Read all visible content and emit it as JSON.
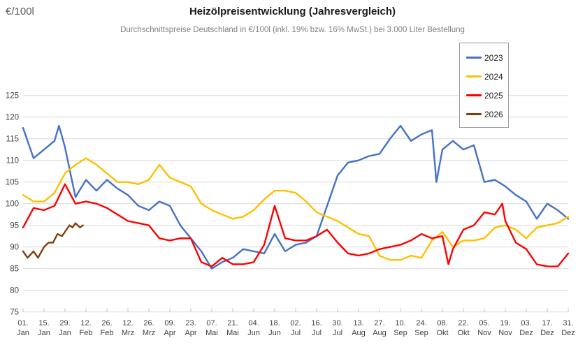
{
  "header": {
    "unit_label": "€/100l",
    "title": "Heizölpreisentwicklung (Jahresvergleich)",
    "subtitle": "Durchschnittspreise Deutschland in €/100l (inkl. 19% bzw. 16% MwSt.) bei 3.000 Liter Bestellung"
  },
  "legend": {
    "items": [
      {
        "label": "2023",
        "color": "#4472C4"
      },
      {
        "label": "2024",
        "color": "#FFC000"
      },
      {
        "label": "2025",
        "color": "#FF0000"
      },
      {
        "label": "2026",
        "color": "#843C0C"
      }
    ]
  },
  "chart_data": {
    "type": "line",
    "title": "Heizölpreisentwicklung (Jahresvergleich)",
    "subtitle": "Durchschnittspreise Deutschland in €/100l (inkl. 19% bzw. 16% MwSt.) bei 3.000 Liter Bestellung",
    "ylabel": "€/100l",
    "xlabel": "",
    "ylim": [
      75,
      125
    ],
    "y_ticks": [
      75,
      80,
      85,
      90,
      95,
      100,
      105,
      110,
      115,
      120,
      125
    ],
    "grid": "horizontal-only",
    "gridline_color": "#D9D9D9",
    "legend_position": "top-right",
    "x_axis_unit": "day-of-year",
    "x_tick_days": [
      1,
      15,
      29,
      43,
      57,
      71,
      85,
      99,
      113,
      127,
      141,
      155,
      169,
      183,
      197,
      211,
      225,
      239,
      253,
      267,
      281,
      295,
      309,
      323,
      337,
      351,
      365
    ],
    "x_tick_labels": [
      [
        "01.",
        "Jan"
      ],
      [
        "15.",
        "Jan"
      ],
      [
        "29.",
        "Jan"
      ],
      [
        "12.",
        "Feb"
      ],
      [
        "26.",
        "Feb"
      ],
      [
        "12.",
        "Mrz"
      ],
      [
        "26.",
        "Mrz"
      ],
      [
        "09.",
        "Apr"
      ],
      [
        "23.",
        "Apr"
      ],
      [
        "07.",
        "Mai"
      ],
      [
        "21.",
        "Mai"
      ],
      [
        "04.",
        "Jun"
      ],
      [
        "18.",
        "Jun"
      ],
      [
        "02.",
        "Jul"
      ],
      [
        "16.",
        "Jul"
      ],
      [
        "30.",
        "Jul"
      ],
      [
        "13.",
        "Aug"
      ],
      [
        "27.",
        "Aug"
      ],
      [
        "10.",
        "Sep"
      ],
      [
        "24.",
        "Sep"
      ],
      [
        "08.",
        "Okt"
      ],
      [
        "22.",
        "Okt"
      ],
      [
        "05.",
        "Nov"
      ],
      [
        "19.",
        "Nov"
      ],
      [
        "03.",
        "Dez"
      ],
      [
        "17.",
        "Dez"
      ],
      [
        "31.",
        "Dez"
      ]
    ],
    "series": [
      {
        "name": "2023",
        "color": "#4472C4",
        "points": [
          [
            1,
            117.5
          ],
          [
            8,
            110.5
          ],
          [
            15,
            112.5
          ],
          [
            22,
            114.5
          ],
          [
            25,
            118
          ],
          [
            29,
            113
          ],
          [
            36,
            101.5
          ],
          [
            43,
            105.5
          ],
          [
            50,
            103
          ],
          [
            57,
            105.5
          ],
          [
            64,
            103.5
          ],
          [
            71,
            102
          ],
          [
            78,
            99.5
          ],
          [
            85,
            98.5
          ],
          [
            92,
            100.5
          ],
          [
            99,
            99.5
          ],
          [
            106,
            95
          ],
          [
            113,
            92
          ],
          [
            120,
            89
          ],
          [
            127,
            85
          ],
          [
            134,
            86.5
          ],
          [
            141,
            87.5
          ],
          [
            148,
            89.5
          ],
          [
            155,
            89
          ],
          [
            162,
            88.5
          ],
          [
            169,
            93
          ],
          [
            176,
            89
          ],
          [
            183,
            90.5
          ],
          [
            190,
            91
          ],
          [
            197,
            92.5
          ],
          [
            204,
            99.5
          ],
          [
            211,
            106.5
          ],
          [
            218,
            109.5
          ],
          [
            225,
            110
          ],
          [
            232,
            111
          ],
          [
            239,
            111.5
          ],
          [
            246,
            115
          ],
          [
            253,
            118
          ],
          [
            260,
            114.5
          ],
          [
            267,
            116
          ],
          [
            274,
            117
          ],
          [
            277,
            105
          ],
          [
            281,
            112.5
          ],
          [
            288,
            114.5
          ],
          [
            295,
            112.5
          ],
          [
            302,
            113.5
          ],
          [
            309,
            105
          ],
          [
            316,
            105.5
          ],
          [
            323,
            104
          ],
          [
            330,
            102
          ],
          [
            337,
            100.5
          ],
          [
            344,
            96.5
          ],
          [
            351,
            100
          ],
          [
            358,
            98.5
          ],
          [
            365,
            96.5
          ]
        ]
      },
      {
        "name": "2024",
        "color": "#FFC000",
        "points": [
          [
            1,
            102
          ],
          [
            8,
            100.5
          ],
          [
            15,
            100.5
          ],
          [
            22,
            102.5
          ],
          [
            29,
            107
          ],
          [
            36,
            109
          ],
          [
            43,
            110.5
          ],
          [
            50,
            109
          ],
          [
            57,
            107
          ],
          [
            64,
            105
          ],
          [
            71,
            105
          ],
          [
            78,
            104.5
          ],
          [
            85,
            105.5
          ],
          [
            92,
            109
          ],
          [
            99,
            106
          ],
          [
            106,
            105
          ],
          [
            113,
            104
          ],
          [
            120,
            100
          ],
          [
            127,
            98.5
          ],
          [
            134,
            97.5
          ],
          [
            141,
            96.5
          ],
          [
            148,
            97
          ],
          [
            155,
            98.5
          ],
          [
            162,
            101
          ],
          [
            169,
            103
          ],
          [
            176,
            103
          ],
          [
            183,
            102.5
          ],
          [
            190,
            100.5
          ],
          [
            197,
            98
          ],
          [
            204,
            97
          ],
          [
            211,
            96
          ],
          [
            218,
            94.5
          ],
          [
            225,
            93
          ],
          [
            232,
            92.5
          ],
          [
            239,
            88
          ],
          [
            246,
            87
          ],
          [
            253,
            87
          ],
          [
            260,
            88
          ],
          [
            267,
            87.5
          ],
          [
            274,
            91.5
          ],
          [
            281,
            93.5
          ],
          [
            288,
            90
          ],
          [
            295,
            91.5
          ],
          [
            302,
            91.5
          ],
          [
            309,
            92
          ],
          [
            316,
            94.5
          ],
          [
            323,
            95
          ],
          [
            330,
            94
          ],
          [
            337,
            92
          ],
          [
            344,
            94.5
          ],
          [
            351,
            95
          ],
          [
            358,
            95.5
          ],
          [
            365,
            97
          ]
        ]
      },
      {
        "name": "2025",
        "color": "#FF0000",
        "points": [
          [
            1,
            94.5
          ],
          [
            8,
            99
          ],
          [
            15,
            98.5
          ],
          [
            22,
            99.5
          ],
          [
            29,
            104.5
          ],
          [
            36,
            100
          ],
          [
            43,
            100.5
          ],
          [
            50,
            100
          ],
          [
            57,
            99
          ],
          [
            64,
            97.5
          ],
          [
            71,
            96
          ],
          [
            78,
            95.5
          ],
          [
            85,
            95
          ],
          [
            92,
            92
          ],
          [
            99,
            91.5
          ],
          [
            106,
            92
          ],
          [
            113,
            92
          ],
          [
            120,
            86.5
          ],
          [
            127,
            85.5
          ],
          [
            134,
            87.5
          ],
          [
            141,
            86
          ],
          [
            148,
            86
          ],
          [
            155,
            86.5
          ],
          [
            162,
            90.5
          ],
          [
            169,
            99.5
          ],
          [
            176,
            92
          ],
          [
            183,
            91.5
          ],
          [
            190,
            91.5
          ],
          [
            197,
            92.5
          ],
          [
            204,
            94
          ],
          [
            211,
            91
          ],
          [
            218,
            88.5
          ],
          [
            225,
            88
          ],
          [
            232,
            88.5
          ],
          [
            239,
            89.5
          ],
          [
            246,
            90
          ],
          [
            253,
            90.5
          ],
          [
            260,
            91.5
          ],
          [
            267,
            93
          ],
          [
            274,
            92
          ],
          [
            281,
            92.5
          ],
          [
            285,
            86
          ],
          [
            288,
            89.5
          ],
          [
            295,
            94
          ],
          [
            302,
            95
          ],
          [
            309,
            98
          ],
          [
            316,
            97.5
          ],
          [
            321,
            100
          ],
          [
            323,
            96
          ],
          [
            330,
            91
          ],
          [
            337,
            89.5
          ],
          [
            344,
            86
          ],
          [
            351,
            85.5
          ],
          [
            358,
            85.5
          ],
          [
            365,
            88.5
          ]
        ]
      },
      {
        "name": "2026",
        "color": "#843C0C",
        "points": [
          [
            1,
            89
          ],
          [
            4,
            87.5
          ],
          [
            8,
            89
          ],
          [
            11,
            87.5
          ],
          [
            15,
            90
          ],
          [
            18,
            91
          ],
          [
            21,
            91
          ],
          [
            24,
            93
          ],
          [
            27,
            92.5
          ],
          [
            29,
            93.5
          ],
          [
            32,
            95
          ],
          [
            34,
            94.5
          ],
          [
            36,
            95.5
          ],
          [
            39,
            94.5
          ],
          [
            41,
            95
          ]
        ]
      }
    ]
  }
}
